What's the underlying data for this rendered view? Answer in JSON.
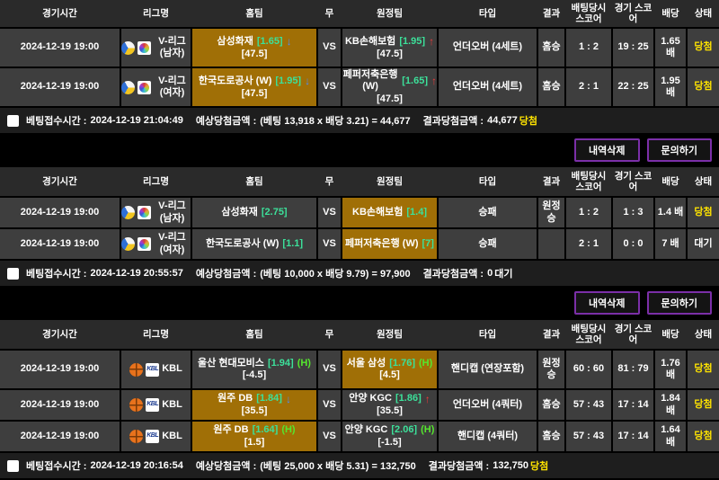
{
  "columns": [
    "경기시간",
    "리그명",
    "홈팀",
    "무",
    "원정팀",
    "타입",
    "결과",
    "배팅당시 스코어",
    "경기 스코어",
    "배당",
    "상태"
  ],
  "vs_label": "VS",
  "icons": {
    "arrow_down": "↓",
    "arrow_up": "↑"
  },
  "buttons": {
    "delete_label": "내역삭제",
    "inquiry_label": "문의하기"
  },
  "colors": {
    "highlight_orange": "#a06f06",
    "odds_green": "#3ce09a",
    "win_yellow": "#ffe400",
    "arrow_up_red": "#f03a3a",
    "arrow_down_blue": "#4a8cff",
    "h_tag_green": "#55e62e",
    "button_border_purple": "#7b2fa8"
  },
  "tables": [
    {
      "rows": [
        {
          "time": "2024-12-19 19:00",
          "sport": "volleyball",
          "league": "V-리그 (남자)",
          "logo": "KOVO",
          "home": {
            "name": "삼성화재",
            "odds": "[1.65]",
            "arrow": "down",
            "tag": "",
            "line": "[47.5]",
            "highlight": true
          },
          "away": {
            "name": "KB손해보험",
            "odds": "[1.95]",
            "arrow": "up",
            "tag": "",
            "line": "[47.5]",
            "highlight": false
          },
          "type": "언더오버 (4세트)",
          "result": "홈승",
          "bet_score": "1 : 2",
          "game_score": "19 : 25",
          "odds": "1.65 배",
          "status": "당첨",
          "status_kind": "win"
        },
        {
          "time": "2024-12-19 19:00",
          "sport": "volleyball",
          "league": "V-리그 (여자)",
          "logo": "KOVO",
          "home": {
            "name": "한국도로공사 (W)",
            "odds": "[1.95]",
            "arrow": "down",
            "tag": "",
            "line": "[47.5]",
            "highlight": true
          },
          "away": {
            "name": "페퍼저축은행 (W)",
            "odds": "[1.65]",
            "arrow": "up",
            "tag": "",
            "line": "[47.5]",
            "highlight": false
          },
          "type": "언더오버 (4세트)",
          "result": "홈승",
          "bet_score": "2 : 1",
          "game_score": "22 : 25",
          "odds": "1.95 배",
          "status": "당첨",
          "status_kind": "win"
        }
      ],
      "summary": {
        "bet_time_label": "베팅접수시간 :",
        "bet_time": "2024-12-19 21:04:49",
        "expected_label": "예상당첨금액 :",
        "expected_formula": "(베팅 13,918 x 배당 3.21) = 44,677",
        "result_label": "결과당첨금액 :",
        "result_amount": "44,677",
        "result_status": "당첨",
        "result_status_kind": "win"
      },
      "show_buttons": true
    },
    {
      "rows": [
        {
          "time": "2024-12-19 19:00",
          "sport": "volleyball",
          "league": "V-리그 (남자)",
          "logo": "KOVO",
          "home": {
            "name": "삼성화재",
            "odds": "[2.75]",
            "arrow": "",
            "tag": "",
            "line": "",
            "highlight": false
          },
          "away": {
            "name": "KB손해보험",
            "odds": "[1.4]",
            "arrow": "",
            "tag": "",
            "line": "",
            "highlight": true
          },
          "type": "승패",
          "result": "원정승",
          "bet_score": "1 : 2",
          "game_score": "1 : 3",
          "odds": "1.4 배",
          "status": "당첨",
          "status_kind": "win"
        },
        {
          "time": "2024-12-19 19:00",
          "sport": "volleyball",
          "league": "V-리그 (여자)",
          "logo": "KOVO",
          "home": {
            "name": "한국도로공사 (W)",
            "odds": "[1.1]",
            "arrow": "",
            "tag": "",
            "line": "",
            "highlight": false
          },
          "away": {
            "name": "페퍼저축은행 (W)",
            "odds": "[7]",
            "arrow": "",
            "tag": "",
            "line": "",
            "highlight": true
          },
          "type": "승패",
          "result": "",
          "bet_score": "2 : 1",
          "game_score": "0 : 0",
          "odds": "7 배",
          "status": "대기",
          "status_kind": "wait"
        }
      ],
      "summary": {
        "bet_time_label": "베팅접수시간 :",
        "bet_time": "2024-12-19 20:55:57",
        "expected_label": "예상당첨금액 :",
        "expected_formula": "(베팅 10,000 x 배당 9.79) = 97,900",
        "result_label": "결과당첨금액 :",
        "result_amount": "0",
        "result_status": "대기",
        "result_status_kind": "wait"
      },
      "show_buttons": true
    },
    {
      "rows": [
        {
          "time": "2024-12-19 19:00",
          "sport": "basketball",
          "league": "KBL",
          "logo": "KBL",
          "home": {
            "name": "울산 현대모비스",
            "odds": "[1.94]",
            "arrow": "",
            "tag": "(H)",
            "line": "[-4.5]",
            "highlight": false
          },
          "away": {
            "name": "서울 삼성",
            "odds": "[1.76]",
            "arrow": "",
            "tag": "(H)",
            "line": "[4.5]",
            "highlight": true
          },
          "type": "핸디캡 (연장포함)",
          "result": "원정승",
          "bet_score": "60 : 60",
          "game_score": "81 : 79",
          "odds": "1.76 배",
          "status": "당첨",
          "status_kind": "win"
        },
        {
          "time": "2024-12-19 19:00",
          "sport": "basketball",
          "league": "KBL",
          "logo": "KBL",
          "home": {
            "name": "원주 DB",
            "odds": "[1.84]",
            "arrow": "down",
            "tag": "",
            "line": "[35.5]",
            "highlight": true
          },
          "away": {
            "name": "안양 KGC",
            "odds": "[1.86]",
            "arrow": "up",
            "tag": "",
            "line": "[35.5]",
            "highlight": false
          },
          "type": "언더오버 (4쿼터)",
          "result": "홈승",
          "bet_score": "57 : 43",
          "game_score": "17 : 14",
          "odds": "1.84 배",
          "status": "당첨",
          "status_kind": "win"
        },
        {
          "time": "2024-12-19 19:00",
          "sport": "basketball",
          "league": "KBL",
          "logo": "KBL",
          "home": {
            "name": "원주 DB",
            "odds": "[1.64]",
            "arrow": "",
            "tag": "(H)",
            "line": "[1.5]",
            "highlight": true
          },
          "away": {
            "name": "안양 KGC",
            "odds": "[2.06]",
            "arrow": "",
            "tag": "(H)",
            "line": "[-1.5]",
            "highlight": false
          },
          "type": "핸디캡 (4쿼터)",
          "result": "홈승",
          "bet_score": "57 : 43",
          "game_score": "17 : 14",
          "odds": "1.64 배",
          "status": "당첨",
          "status_kind": "win"
        }
      ],
      "summary": {
        "bet_time_label": "베팅접수시간 :",
        "bet_time": "2024-12-19 20:16:54",
        "expected_label": "예상당첨금액 :",
        "expected_formula": "(베팅 25,000 x 배당 5.31) = 132,750",
        "result_label": "결과당첨금액 :",
        "result_amount": "132,750",
        "result_status": "당첨",
        "result_status_kind": "win"
      },
      "show_buttons": false
    }
  ]
}
